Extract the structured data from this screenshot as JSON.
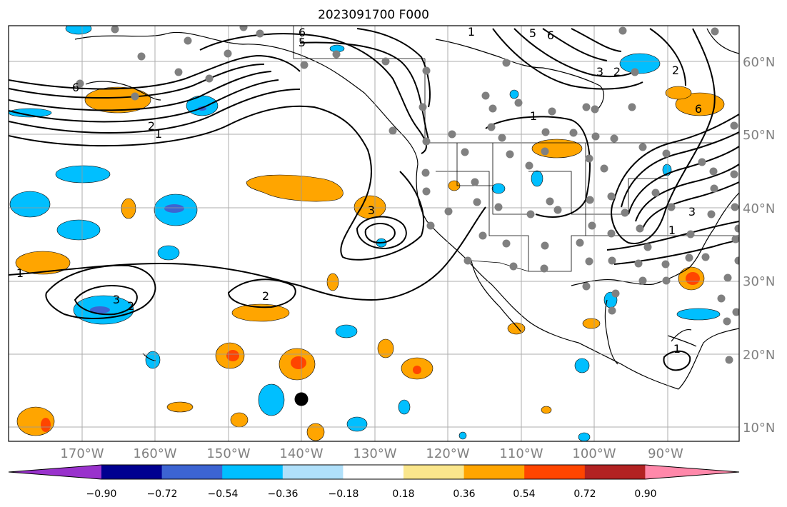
{
  "title": "2023091700 F000",
  "colors": {
    "contour": "#000000",
    "grid": "#999999",
    "station": "#808080",
    "marker": "#000000"
  },
  "lon_labels": [
    "170°W",
    "160°W",
    "150°W",
    "140°W",
    "130°W",
    "120°W",
    "110°W",
    "100°W",
    "90°W"
  ],
  "lat_labels": [
    "60°N",
    "50°N",
    "40°N",
    "30°N",
    "20°N",
    "10°N"
  ],
  "contour_labels": [
    "6",
    "5",
    "6",
    "2",
    "1",
    "2",
    "1",
    "3",
    "3",
    "2",
    "1",
    "1",
    "5",
    "6",
    "3",
    "2",
    "6",
    "3",
    "2",
    "1",
    "1"
  ],
  "colorbar": {
    "ticks": [
      "−0.90",
      "−0.72",
      "−0.54",
      "−0.36",
      "−0.18",
      "0.18",
      "0.36",
      "0.54",
      "0.72",
      "0.90"
    ],
    "colors": [
      "#9932cc",
      "#000090",
      "#3c64d2",
      "#00bfff",
      "#b0e0fa",
      "#ffffff",
      "#fae68c",
      "#ffa500",
      "#ff4500",
      "#b22222",
      "#ff88aa"
    ]
  }
}
